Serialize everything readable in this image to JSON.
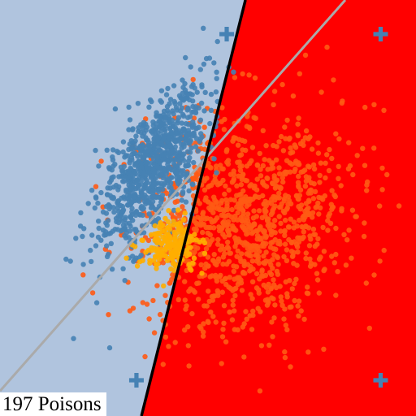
{
  "caption": "197 Poisons",
  "colors": {
    "region_left": "#b0c4de",
    "region_right": "#ff0000",
    "clean_class_a": "#4682b4",
    "clean_class_b": "#ff5a14",
    "poison_points": "#ffae00",
    "decision_boundary": "#000000",
    "reference_boundary": "#aaaaaa",
    "marker": "#4682b4"
  },
  "chart_data": {
    "type": "scatter",
    "title": "",
    "xlabel": "",
    "ylabel": "",
    "xlim": [
      0,
      1
    ],
    "ylim": [
      0,
      1
    ],
    "grid": false,
    "legend": "none",
    "regions": [
      {
        "name": "class-a-region",
        "color": "#b0c4de"
      },
      {
        "name": "class-b-region",
        "color": "#ff0000"
      }
    ],
    "lines": [
      {
        "name": "poisoned-decision-boundary",
        "color": "#000000",
        "points": [
          [
            0.34,
            0.0
          ],
          [
            0.59,
            1.0
          ]
        ]
      },
      {
        "name": "clean-decision-boundary",
        "color": "#aaaaaa",
        "points": [
          [
            0.0,
            0.06
          ],
          [
            0.83,
            1.0
          ]
        ]
      }
    ],
    "markers": [
      {
        "name": "plus-marker-top-left",
        "shape": "plus",
        "x": 0.545,
        "y": 0.918
      },
      {
        "name": "plus-marker-top-right",
        "shape": "plus",
        "x": 0.915,
        "y": 0.918
      },
      {
        "name": "plus-marker-bottom-left",
        "shape": "plus",
        "x": 0.328,
        "y": 0.086
      },
      {
        "name": "plus-marker-bottom-right",
        "shape": "plus",
        "x": 0.915,
        "y": 0.086
      }
    ],
    "series": [
      {
        "role": "clean-class-a",
        "color": "#4682b4",
        "count": 900,
        "center": [
          0.37,
          0.6
        ],
        "axis": [
          0.5,
          0.866
        ],
        "spread_major": 0.11,
        "spread_minor": 0.045
      },
      {
        "role": "clean-class-b",
        "color": "#ff5a14",
        "count": 1100,
        "center": [
          0.59,
          0.47
        ],
        "axis": [
          0.6,
          0.8
        ],
        "spread_major": 0.14,
        "spread_minor": 0.12
      },
      {
        "role": "poison",
        "color": "#ffae00",
        "count": 197,
        "center": [
          0.41,
          0.41
        ],
        "axis": [
          1.0,
          0.0
        ],
        "spread_major": 0.035,
        "spread_minor": 0.03
      }
    ]
  }
}
